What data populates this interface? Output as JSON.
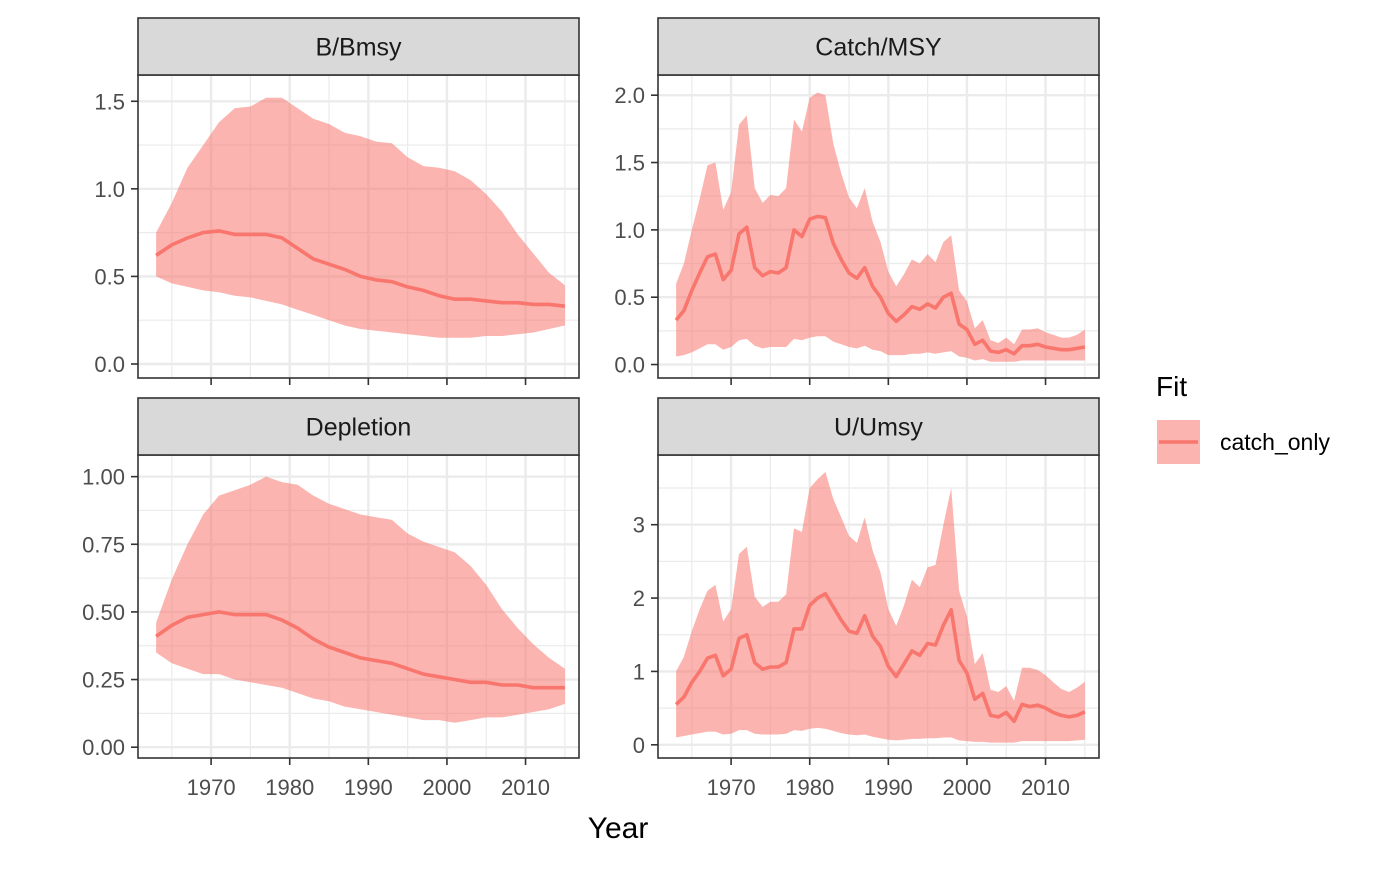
{
  "chart_data": {
    "type": "area",
    "xlabel": "Year",
    "legend": {
      "title": "Fit",
      "placement": "right",
      "entries": [
        "catch_only"
      ]
    },
    "colors": {
      "line": "#F8766D",
      "ribbon": "#F8766D",
      "strip_bg": "#D9D9D9",
      "panel_border": "#333333",
      "grid": "#EBEBEB"
    },
    "grid": true,
    "x_ticks": [
      1970,
      1980,
      1990,
      2000,
      2010
    ],
    "panels": [
      {
        "strip": "B/Bmsy",
        "xlim": [
          1960.7,
          2016.8
        ],
        "ylim": [
          -0.08,
          1.65
        ],
        "y_ticks": [
          0.0,
          0.5,
          1.0,
          1.5
        ],
        "y_tick_labels": [
          "0.0",
          "0.5",
          "1.0",
          "1.5"
        ],
        "x": [
          1963,
          1965,
          1967,
          1969,
          1971,
          1973,
          1975,
          1977,
          1979,
          1981,
          1983,
          1985,
          1987,
          1989,
          1991,
          1993,
          1995,
          1997,
          1999,
          2001,
          2003,
          2005,
          2007,
          2009,
          2011,
          2013,
          2015
        ],
        "series": [
          {
            "name": "catch_only",
            "mid": [
              0.62,
              0.68,
              0.72,
              0.75,
              0.76,
              0.74,
              0.74,
              0.74,
              0.72,
              0.66,
              0.6,
              0.57,
              0.54,
              0.5,
              0.48,
              0.47,
              0.44,
              0.42,
              0.39,
              0.37,
              0.37,
              0.36,
              0.35,
              0.35,
              0.34,
              0.34,
              0.33
            ],
            "lower": [
              0.5,
              0.46,
              0.44,
              0.42,
              0.41,
              0.39,
              0.38,
              0.36,
              0.34,
              0.31,
              0.28,
              0.25,
              0.22,
              0.2,
              0.19,
              0.18,
              0.17,
              0.16,
              0.15,
              0.15,
              0.15,
              0.16,
              0.16,
              0.17,
              0.18,
              0.2,
              0.22
            ],
            "upper": [
              0.75,
              0.92,
              1.12,
              1.25,
              1.38,
              1.46,
              1.47,
              1.52,
              1.52,
              1.46,
              1.4,
              1.37,
              1.32,
              1.3,
              1.27,
              1.26,
              1.18,
              1.13,
              1.12,
              1.1,
              1.05,
              0.97,
              0.87,
              0.74,
              0.63,
              0.52,
              0.45
            ]
          }
        ]
      },
      {
        "strip": "Catch/MSY",
        "xlim": [
          1960.7,
          2016.8
        ],
        "ylim": [
          -0.1,
          2.15
        ],
        "y_ticks": [
          0.0,
          0.5,
          1.0,
          1.5,
          2.0
        ],
        "y_tick_labels": [
          "0.0",
          "0.5",
          "1.0",
          "1.5",
          "2.0"
        ],
        "x": [
          1963,
          1964,
          1965,
          1966,
          1967,
          1968,
          1969,
          1970,
          1971,
          1972,
          1973,
          1974,
          1975,
          1976,
          1977,
          1978,
          1979,
          1980,
          1981,
          1982,
          1983,
          1984,
          1985,
          1986,
          1987,
          1988,
          1989,
          1990,
          1991,
          1992,
          1993,
          1994,
          1995,
          1996,
          1997,
          1998,
          1999,
          2000,
          2001,
          2002,
          2003,
          2004,
          2005,
          2006,
          2007,
          2008,
          2009,
          2010,
          2011,
          2012,
          2013,
          2014,
          2015
        ],
        "series": [
          {
            "name": "catch_only",
            "mid": [
              0.33,
              0.4,
              0.55,
              0.68,
              0.8,
              0.82,
              0.63,
              0.7,
              0.97,
              1.02,
              0.72,
              0.66,
              0.69,
              0.68,
              0.72,
              1.0,
              0.95,
              1.08,
              1.1,
              1.09,
              0.9,
              0.78,
              0.68,
              0.64,
              0.72,
              0.58,
              0.5,
              0.38,
              0.32,
              0.37,
              0.43,
              0.41,
              0.45,
              0.42,
              0.5,
              0.53,
              0.3,
              0.26,
              0.15,
              0.18,
              0.1,
              0.09,
              0.11,
              0.08,
              0.14,
              0.14,
              0.15,
              0.13,
              0.12,
              0.11,
              0.11,
              0.12,
              0.13
            ],
            "lower": [
              0.06,
              0.07,
              0.09,
              0.12,
              0.15,
              0.15,
              0.11,
              0.13,
              0.18,
              0.19,
              0.14,
              0.12,
              0.13,
              0.13,
              0.13,
              0.19,
              0.18,
              0.2,
              0.21,
              0.21,
              0.17,
              0.15,
              0.13,
              0.12,
              0.14,
              0.11,
              0.1,
              0.07,
              0.07,
              0.07,
              0.08,
              0.08,
              0.09,
              0.08,
              0.09,
              0.1,
              0.06,
              0.05,
              0.03,
              0.04,
              0.02,
              0.02,
              0.02,
              0.02,
              0.03,
              0.03,
              0.03,
              0.03,
              0.03,
              0.03,
              0.03,
              0.03,
              0.03
            ],
            "upper": [
              0.6,
              0.75,
              1.0,
              1.23,
              1.48,
              1.5,
              1.15,
              1.28,
              1.78,
              1.85,
              1.31,
              1.2,
              1.26,
              1.25,
              1.31,
              1.82,
              1.73,
              1.98,
              2.02,
              2.0,
              1.64,
              1.42,
              1.24,
              1.16,
              1.31,
              1.06,
              0.91,
              0.69,
              0.58,
              0.67,
              0.78,
              0.75,
              0.82,
              0.76,
              0.91,
              0.96,
              0.55,
              0.47,
              0.27,
              0.33,
              0.18,
              0.16,
              0.2,
              0.15,
              0.26,
              0.26,
              0.27,
              0.24,
              0.22,
              0.2,
              0.2,
              0.22,
              0.26
            ]
          }
        ]
      },
      {
        "strip": "Depletion",
        "xlim": [
          1960.7,
          2016.8
        ],
        "ylim": [
          -0.04,
          1.08
        ],
        "y_ticks": [
          0.0,
          0.25,
          0.5,
          0.75,
          1.0
        ],
        "y_tick_labels": [
          "0.00",
          "0.25",
          "0.50",
          "0.75",
          "1.00"
        ],
        "x": [
          1963,
          1965,
          1967,
          1969,
          1971,
          1973,
          1975,
          1977,
          1979,
          1981,
          1983,
          1985,
          1987,
          1989,
          1991,
          1993,
          1995,
          1997,
          1999,
          2001,
          2003,
          2005,
          2007,
          2009,
          2011,
          2013,
          2015
        ],
        "series": [
          {
            "name": "catch_only",
            "mid": [
              0.41,
              0.45,
              0.48,
              0.49,
              0.5,
              0.49,
              0.49,
              0.49,
              0.47,
              0.44,
              0.4,
              0.37,
              0.35,
              0.33,
              0.32,
              0.31,
              0.29,
              0.27,
              0.26,
              0.25,
              0.24,
              0.24,
              0.23,
              0.23,
              0.22,
              0.22,
              0.22
            ],
            "lower": [
              0.35,
              0.31,
              0.29,
              0.27,
              0.27,
              0.25,
              0.24,
              0.23,
              0.22,
              0.2,
              0.18,
              0.17,
              0.15,
              0.14,
              0.13,
              0.12,
              0.11,
              0.1,
              0.1,
              0.09,
              0.1,
              0.11,
              0.11,
              0.12,
              0.13,
              0.14,
              0.16
            ],
            "upper": [
              0.46,
              0.62,
              0.75,
              0.86,
              0.93,
              0.95,
              0.97,
              1.0,
              0.98,
              0.97,
              0.93,
              0.9,
              0.88,
              0.86,
              0.85,
              0.84,
              0.79,
              0.76,
              0.74,
              0.72,
              0.67,
              0.6,
              0.51,
              0.44,
              0.38,
              0.33,
              0.29
            ]
          }
        ]
      },
      {
        "strip": "U/Umsy",
        "xlim": [
          1960.7,
          2016.8
        ],
        "ylim": [
          -0.18,
          3.95
        ],
        "y_ticks": [
          0,
          1,
          2,
          3
        ],
        "y_tick_labels": [
          "0",
          "1",
          "2",
          "3"
        ],
        "x": [
          1963,
          1964,
          1965,
          1966,
          1967,
          1968,
          1969,
          1970,
          1971,
          1972,
          1973,
          1974,
          1975,
          1976,
          1977,
          1978,
          1979,
          1980,
          1981,
          1982,
          1983,
          1984,
          1985,
          1986,
          1987,
          1988,
          1989,
          1990,
          1991,
          1992,
          1993,
          1994,
          1995,
          1996,
          1997,
          1998,
          1999,
          2000,
          2001,
          2002,
          2003,
          2004,
          2005,
          2006,
          2007,
          2008,
          2009,
          2010,
          2011,
          2012,
          2013,
          2014,
          2015
        ],
        "series": [
          {
            "name": "catch_only",
            "mid": [
              0.55,
              0.65,
              0.85,
              1.0,
              1.18,
              1.22,
              0.94,
              1.03,
              1.45,
              1.5,
              1.12,
              1.03,
              1.06,
              1.06,
              1.12,
              1.58,
              1.58,
              1.9,
              2.0,
              2.06,
              1.88,
              1.7,
              1.55,
              1.52,
              1.76,
              1.48,
              1.34,
              1.07,
              0.93,
              1.1,
              1.28,
              1.22,
              1.38,
              1.36,
              1.63,
              1.84,
              1.15,
              0.98,
              0.62,
              0.7,
              0.4,
              0.38,
              0.44,
              0.32,
              0.55,
              0.52,
              0.54,
              0.5,
              0.44,
              0.4,
              0.38,
              0.4,
              0.45
            ],
            "lower": [
              0.1,
              0.12,
              0.14,
              0.16,
              0.18,
              0.18,
              0.14,
              0.15,
              0.2,
              0.2,
              0.15,
              0.14,
              0.14,
              0.14,
              0.15,
              0.2,
              0.19,
              0.22,
              0.23,
              0.22,
              0.19,
              0.16,
              0.14,
              0.13,
              0.14,
              0.11,
              0.09,
              0.07,
              0.06,
              0.07,
              0.08,
              0.08,
              0.09,
              0.09,
              0.1,
              0.1,
              0.06,
              0.05,
              0.04,
              0.04,
              0.03,
              0.03,
              0.03,
              0.03,
              0.05,
              0.05,
              0.05,
              0.05,
              0.05,
              0.05,
              0.05,
              0.06,
              0.07
            ],
            "upper": [
              1.0,
              1.2,
              1.55,
              1.85,
              2.1,
              2.18,
              1.68,
              1.85,
              2.6,
              2.7,
              2.02,
              1.88,
              1.95,
              1.95,
              2.05,
              2.95,
              2.9,
              3.5,
              3.62,
              3.72,
              3.35,
              3.1,
              2.85,
              2.75,
              3.1,
              2.65,
              2.35,
              1.85,
              1.62,
              1.9,
              2.25,
              2.15,
              2.42,
              2.45,
              3.0,
              3.5,
              2.1,
              1.75,
              1.1,
              1.25,
              0.75,
              0.72,
              0.8,
              0.6,
              1.05,
              1.05,
              1.02,
              0.95,
              0.85,
              0.76,
              0.72,
              0.78,
              0.86
            ]
          }
        ]
      }
    ]
  }
}
